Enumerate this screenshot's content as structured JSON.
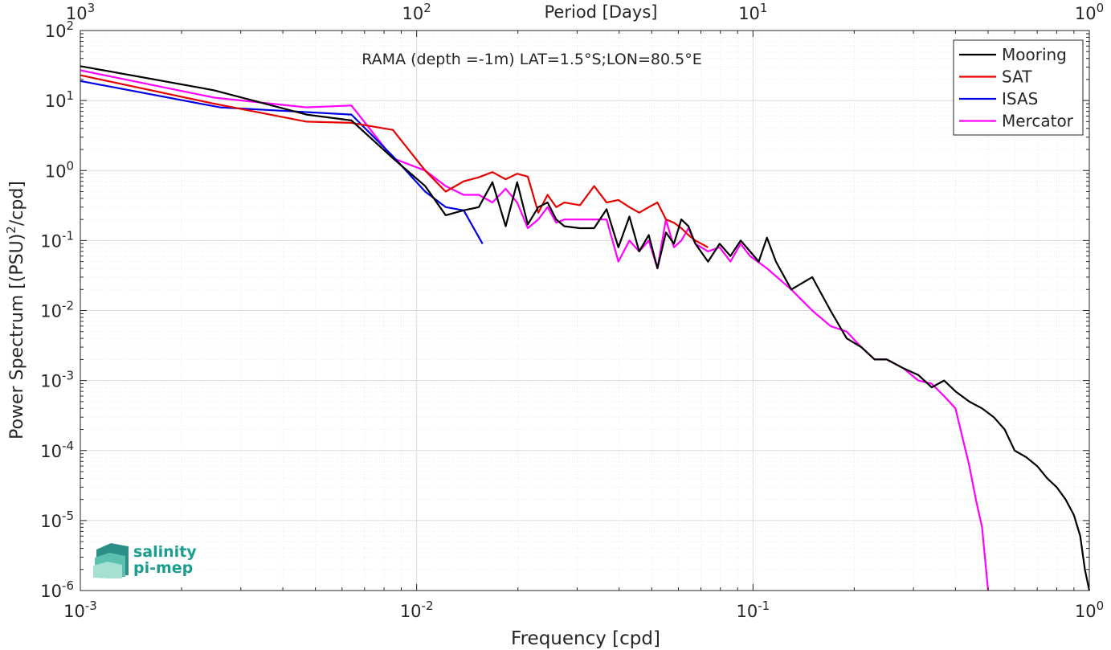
{
  "chart_data": {
    "type": "line",
    "title": "RAMA (depth =-1m) LAT=1.5°S;LON=80.5°E",
    "xlabel": "Frequency [cpd]",
    "ylabel": "Power Spectrum [(PSU)²/cpd]",
    "top_axis_label": "Period [Days]",
    "x_scale": "log",
    "y_scale": "log",
    "xlim": [
      0.001,
      1
    ],
    "ylim": [
      1e-06,
      100
    ],
    "grid": true,
    "legend_position": "top-right",
    "x_ticks": [
      {
        "value": 0.001,
        "base": "10",
        "exp": "-3"
      },
      {
        "value": 0.01,
        "base": "10",
        "exp": "-2"
      },
      {
        "value": 0.1,
        "base": "10",
        "exp": "-1"
      },
      {
        "value": 1,
        "base": "10",
        "exp": "0"
      }
    ],
    "top_ticks": [
      {
        "value": 1000,
        "base": "10",
        "exp": "3"
      },
      {
        "value": 100,
        "base": "10",
        "exp": "2"
      },
      {
        "value": 10,
        "base": "10",
        "exp": "1"
      },
      {
        "value": 1,
        "base": "10",
        "exp": "0"
      }
    ],
    "y_ticks": [
      {
        "value": 100,
        "base": "10",
        "exp": "2"
      },
      {
        "value": 10,
        "base": "10",
        "exp": "1"
      },
      {
        "value": 1,
        "base": "10",
        "exp": "0"
      },
      {
        "value": 0.1,
        "base": "10",
        "exp": "-1"
      },
      {
        "value": 0.01,
        "base": "10",
        "exp": "-2"
      },
      {
        "value": 0.001,
        "base": "10",
        "exp": "-3"
      },
      {
        "value": 0.0001,
        "base": "10",
        "exp": "-4"
      },
      {
        "value": 1e-05,
        "base": "10",
        "exp": "-5"
      },
      {
        "value": 1e-06,
        "base": "10",
        "exp": "-6"
      }
    ],
    "series": [
      {
        "name": "Mooring",
        "color": "#000000",
        "x": [
          0.001,
          0.0025,
          0.0047,
          0.0064,
          0.0085,
          0.0106,
          0.0122,
          0.0138,
          0.0153,
          0.0168,
          0.0184,
          0.0199,
          0.0214,
          0.023,
          0.0245,
          0.026,
          0.0275,
          0.0306,
          0.0337,
          0.0367,
          0.0398,
          0.0429,
          0.0459,
          0.049,
          0.052,
          0.0551,
          0.0582,
          0.0612,
          0.0643,
          0.0674,
          0.0735,
          0.0796,
          0.0857,
          0.0919,
          0.098,
          0.104,
          0.11,
          0.117,
          0.13,
          0.15,
          0.17,
          0.19,
          0.21,
          0.23,
          0.25,
          0.28,
          0.31,
          0.34,
          0.37,
          0.4,
          0.44,
          0.48,
          0.52,
          0.56,
          0.6,
          0.65,
          0.7,
          0.75,
          0.8,
          0.85,
          0.9,
          0.94,
          0.97,
          1.0
        ],
        "y": [
          31,
          14,
          6.3,
          5.2,
          1.5,
          0.6,
          0.23,
          0.27,
          0.3,
          0.68,
          0.16,
          0.68,
          0.17,
          0.3,
          0.35,
          0.2,
          0.16,
          0.15,
          0.15,
          0.28,
          0.08,
          0.22,
          0.07,
          0.12,
          0.04,
          0.13,
          0.09,
          0.2,
          0.16,
          0.09,
          0.05,
          0.09,
          0.06,
          0.1,
          0.07,
          0.05,
          0.11,
          0.05,
          0.02,
          0.03,
          0.01,
          0.004,
          0.003,
          0.002,
          0.002,
          0.0015,
          0.0012,
          0.0008,
          0.001,
          0.0007,
          0.0005,
          0.0004,
          0.0003,
          0.0002,
          0.0001,
          8e-05,
          6e-05,
          4e-05,
          3e-05,
          2e-05,
          1.2e-05,
          6e-06,
          2e-06,
          1e-06
        ]
      },
      {
        "name": "SAT",
        "color": "#e60000",
        "x": [
          0.001,
          0.0025,
          0.0047,
          0.0064,
          0.0085,
          0.0106,
          0.0122,
          0.0138,
          0.0153,
          0.0168,
          0.0184,
          0.0199,
          0.0214,
          0.023,
          0.0245,
          0.026,
          0.0275,
          0.0306,
          0.0337,
          0.0367,
          0.0398,
          0.0429,
          0.0459,
          0.049,
          0.052,
          0.0551,
          0.0582,
          0.0612,
          0.0643,
          0.0674,
          0.0735
        ],
        "y": [
          23,
          9,
          5,
          4.8,
          3.8,
          1.0,
          0.5,
          0.7,
          0.8,
          0.95,
          0.75,
          0.9,
          0.82,
          0.25,
          0.45,
          0.3,
          0.35,
          0.32,
          0.6,
          0.35,
          0.38,
          0.3,
          0.25,
          0.3,
          0.35,
          0.2,
          0.18,
          0.15,
          0.12,
          0.1,
          0.08
        ]
      },
      {
        "name": "ISAS",
        "color": "#0000e6",
        "x": [
          0.001,
          0.0026,
          0.0064,
          0.0085,
          0.0106,
          0.0122,
          0.0138,
          0.0157
        ],
        "y": [
          19,
          8,
          6.3,
          1.6,
          0.5,
          0.3,
          0.27,
          0.09
        ]
      },
      {
        "name": "Mercator",
        "color": "#ff00ff",
        "x": [
          0.001,
          0.0025,
          0.0047,
          0.0064,
          0.0085,
          0.0106,
          0.0122,
          0.0138,
          0.0153,
          0.0168,
          0.0184,
          0.0199,
          0.0214,
          0.023,
          0.0245,
          0.026,
          0.0275,
          0.0306,
          0.0337,
          0.0367,
          0.0398,
          0.0429,
          0.0459,
          0.049,
          0.052,
          0.0551,
          0.0582,
          0.0612,
          0.0643,
          0.0674,
          0.0735,
          0.0796,
          0.0857,
          0.0919,
          0.098,
          0.11,
          0.13,
          0.15,
          0.17,
          0.19,
          0.21,
          0.23,
          0.25,
          0.28,
          0.31,
          0.34,
          0.37,
          0.4,
          0.42,
          0.44,
          0.46,
          0.48,
          0.5
        ],
        "y": [
          27,
          11,
          8,
          8.5,
          1.5,
          1.0,
          0.6,
          0.45,
          0.45,
          0.35,
          0.55,
          0.35,
          0.15,
          0.2,
          0.3,
          0.18,
          0.2,
          0.2,
          0.2,
          0.2,
          0.05,
          0.1,
          0.07,
          0.1,
          0.04,
          0.2,
          0.08,
          0.1,
          0.15,
          0.09,
          0.07,
          0.08,
          0.05,
          0.09,
          0.06,
          0.04,
          0.02,
          0.01,
          0.006,
          0.005,
          0.003,
          0.002,
          0.002,
          0.0015,
          0.001,
          0.0009,
          0.0006,
          0.0004,
          0.00015,
          6e-05,
          2e-05,
          8e-06,
          1e-06
        ]
      }
    ]
  },
  "logo": {
    "line1": "salinity",
    "line2": "pi-mep",
    "color": "#1a9e8f"
  }
}
